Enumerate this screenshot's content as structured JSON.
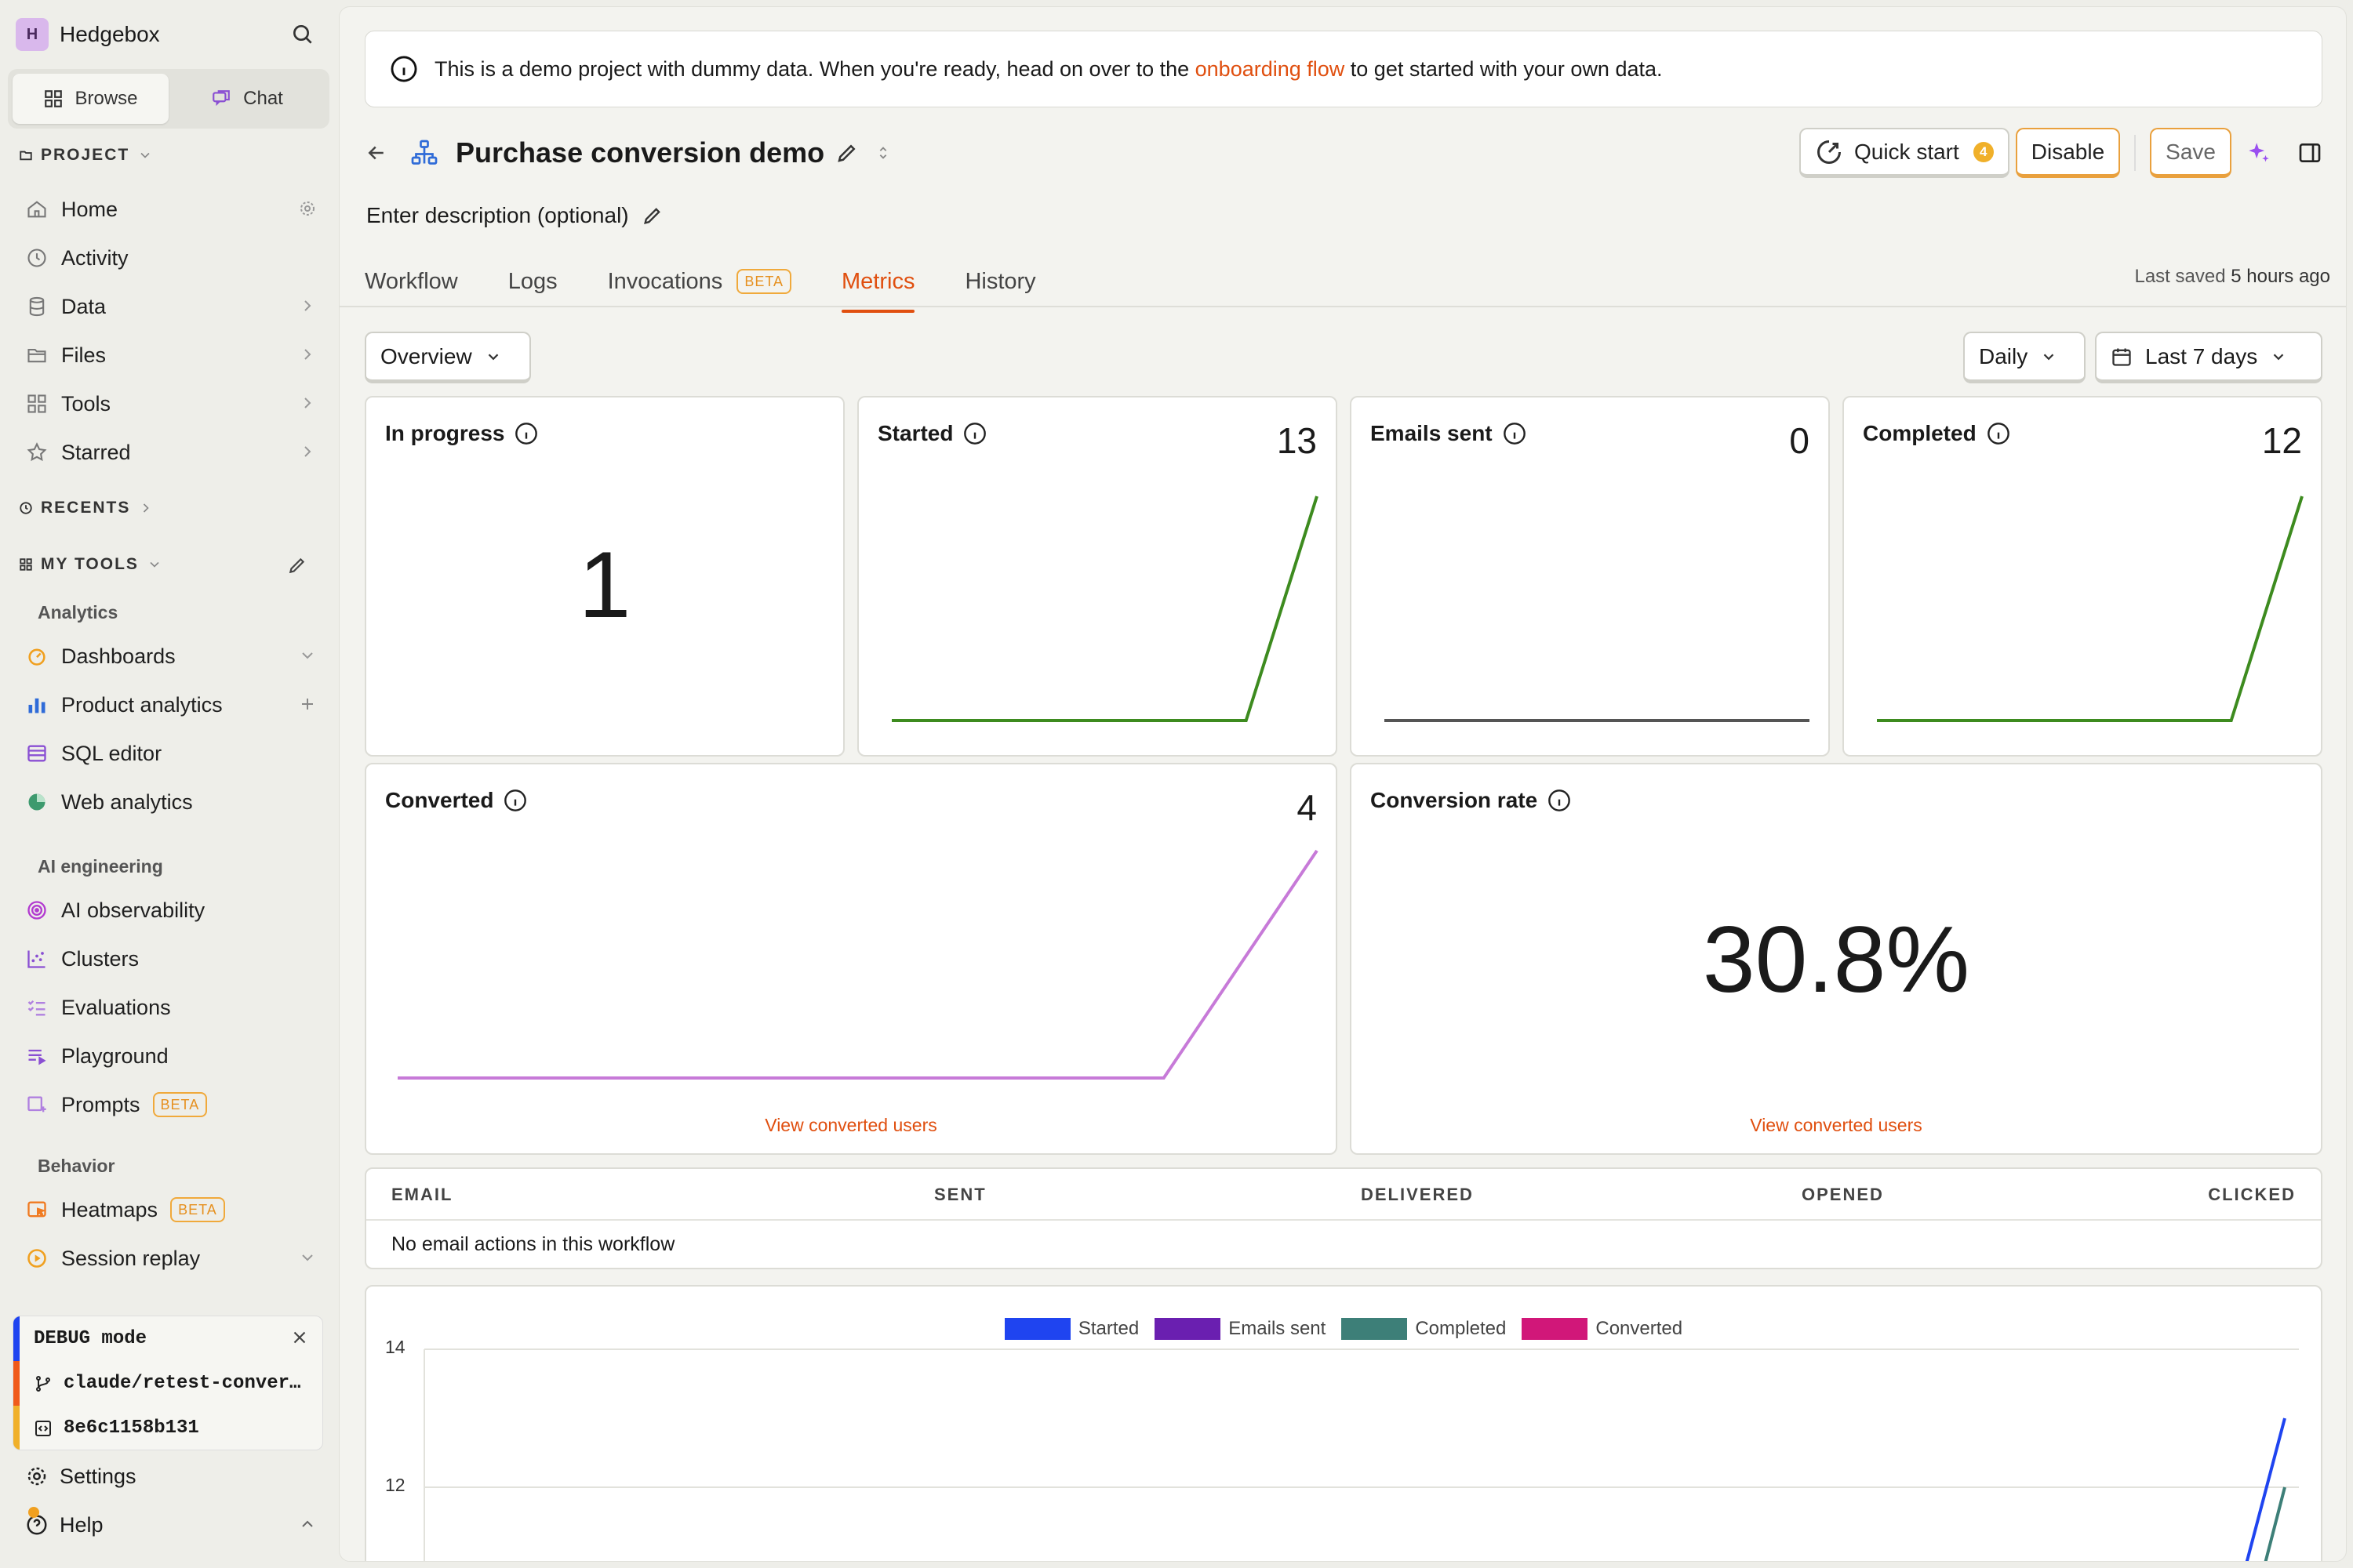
{
  "sidebar": {
    "org_initial": "H",
    "org_name": "Hedgebox",
    "seg_browse": "Browse",
    "seg_chat": "Chat",
    "project_label": "PROJECT",
    "project_items": [
      {
        "label": "Home"
      },
      {
        "label": "Activity"
      },
      {
        "label": "Data"
      },
      {
        "label": "Files"
      },
      {
        "label": "Tools"
      },
      {
        "label": "Starred"
      }
    ],
    "recents_label": "RECENTS",
    "mytools_label": "MY TOOLS",
    "groups": {
      "analytics": "Analytics",
      "ai": "AI engineering",
      "behavior": "Behavior"
    },
    "analytics_items": [
      "Dashboards",
      "Product analytics",
      "SQL editor",
      "Web analytics"
    ],
    "ai_items": [
      "AI observability",
      "Clusters",
      "Evaluations",
      "Playground",
      "Prompts"
    ],
    "behavior_items": [
      "Heatmaps",
      "Session replay"
    ],
    "beta_label": "BETA",
    "debug": {
      "mode": "DEBUG mode",
      "branch": "claude/retest-conver…",
      "commit": "8e6c1158b131"
    },
    "settings_label": "Settings",
    "help_label": "Help"
  },
  "banner": {
    "before": "This is a demo project with dummy data. When you're ready, head on over to the ",
    "link": "onboarding flow",
    "after": " to get started with your own data."
  },
  "header": {
    "title": "Purchase conversion demo",
    "description": "Enter description (optional)",
    "quick_start": "Quick start",
    "quick_start_count": "4",
    "disable": "Disable",
    "save": "Save",
    "last_saved_prefix": "Last saved",
    "last_saved_time": "5 hours ago"
  },
  "tabs": [
    {
      "label": "Workflow"
    },
    {
      "label": "Logs"
    },
    {
      "label": "Invocations",
      "badge": "BETA"
    },
    {
      "label": "Metrics"
    },
    {
      "label": "History"
    }
  ],
  "filters": {
    "view": "Overview",
    "interval": "Daily",
    "range": "Last 7 days"
  },
  "metrics": {
    "in_progress": {
      "label": "In progress",
      "value": "1"
    },
    "started": {
      "label": "Started",
      "value": "13"
    },
    "emails_sent": {
      "label": "Emails sent",
      "value": "0"
    },
    "completed": {
      "label": "Completed",
      "value": "12"
    },
    "converted": {
      "label": "Converted",
      "value": "4",
      "link": "View converted users"
    },
    "conversion_rate": {
      "label": "Conversion rate",
      "value": "30.8%",
      "link": "View converted users"
    }
  },
  "colors": {
    "accent": "#e04f0f",
    "spark_green": "#3d8b1f",
    "spark_gray": "#555555",
    "spark_purple": "#c77ad8",
    "started": "#1f44f0",
    "emails_sent": "#6a1fb0",
    "completed": "#3d7f78",
    "converted": "#d11779"
  },
  "table": {
    "columns": [
      "EMAIL",
      "SENT",
      "DELIVERED",
      "OPENED",
      "CLICKED"
    ],
    "empty": "No email actions in this workflow"
  },
  "chart_data": [
    {
      "type": "line",
      "series": [
        {
          "values": [
            0,
            0,
            0,
            0,
            0,
            0,
            13
          ]
        }
      ],
      "ylim": [
        0,
        13
      ]
    },
    {
      "type": "line",
      "series": [
        {
          "values": [
            0,
            0,
            0,
            0,
            0,
            0,
            0
          ]
        }
      ],
      "ylim": [
        0,
        1
      ]
    },
    {
      "type": "line",
      "series": [
        {
          "values": [
            0,
            0,
            0,
            0,
            0,
            0,
            12
          ]
        }
      ],
      "ylim": [
        0,
        12
      ]
    },
    {
      "type": "line",
      "series": [
        {
          "values": [
            0,
            0,
            0,
            0,
            0,
            0,
            4
          ]
        }
      ],
      "ylim": [
        0,
        4
      ]
    },
    {
      "type": "line",
      "legend": [
        "Started",
        "Emails sent",
        "Completed",
        "Converted"
      ],
      "ytick_labels": [
        "14",
        "12"
      ],
      "series": [
        {
          "name": "Started",
          "values": [
            0,
            0,
            0,
            0,
            0,
            0,
            13
          ]
        },
        {
          "name": "Completed",
          "values": [
            0,
            0,
            0,
            0,
            0,
            0,
            12
          ]
        }
      ]
    }
  ]
}
